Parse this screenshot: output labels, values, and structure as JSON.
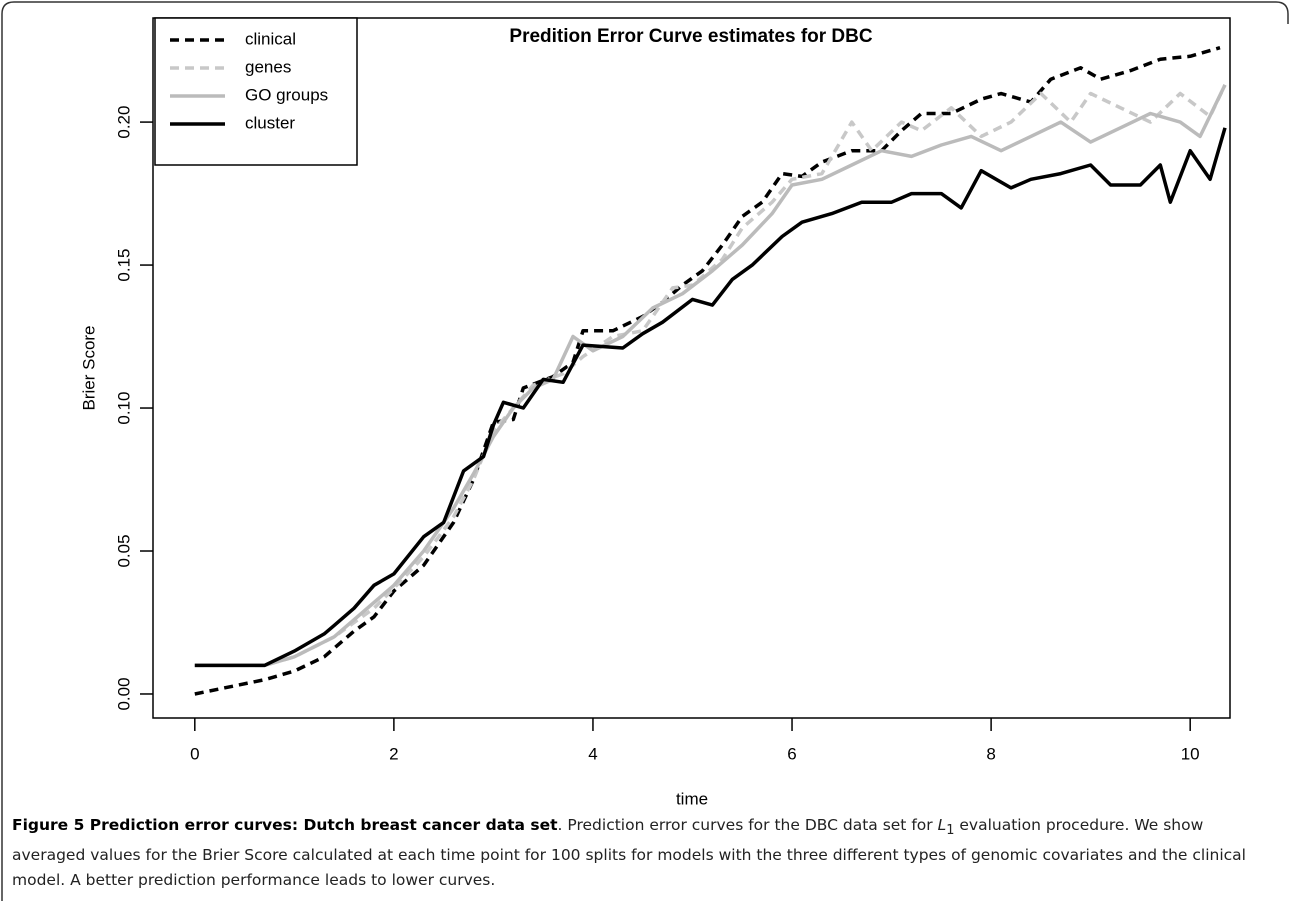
{
  "chart_data": {
    "type": "line",
    "title": "Predition Error Curve estimates for DBC",
    "xlabel": "time",
    "ylabel": "Brier Score",
    "xlim": [
      -0.42,
      10.4
    ],
    "ylim": [
      -0.0084,
      0.2364
    ],
    "xticks": [
      0,
      2,
      4,
      6,
      8,
      10
    ],
    "yticks": [
      {
        "value": 0,
        "label": "0.00"
      },
      {
        "value": 0.05,
        "label": "0.05"
      },
      {
        "value": 0.1,
        "label": "0.10"
      },
      {
        "value": 0.15,
        "label": "0.15"
      },
      {
        "value": 0.2,
        "label": "0.20"
      }
    ],
    "legend": "top-left",
    "series": [
      {
        "name": "clinical",
        "color": "#000000",
        "linestyle": "dashed",
        "x": [
          0,
          0.7,
          1.0,
          1.3,
          1.6,
          1.8,
          2.0,
          2.3,
          2.6,
          2.8,
          3.0,
          3.2,
          3.3,
          3.6,
          3.8,
          3.9,
          4.2,
          4.5,
          4.7,
          4.9,
          5.1,
          5.3,
          5.5,
          5.7,
          5.9,
          6.1,
          6.3,
          6.6,
          6.9,
          7.1,
          7.3,
          7.6,
          7.9,
          8.1,
          8.4,
          8.6,
          8.9,
          9.1,
          9.4,
          9.7,
          10.0,
          10.3
        ],
        "values": [
          0,
          0.005,
          0.008,
          0.013,
          0.022,
          0.027,
          0.036,
          0.045,
          0.06,
          0.075,
          0.095,
          0.096,
          0.107,
          0.111,
          0.116,
          0.127,
          0.127,
          0.132,
          0.137,
          0.143,
          0.148,
          0.157,
          0.167,
          0.172,
          0.182,
          0.181,
          0.186,
          0.19,
          0.19,
          0.197,
          0.203,
          0.203,
          0.208,
          0.21,
          0.207,
          0.215,
          0.219,
          0.215,
          0.218,
          0.222,
          0.223,
          0.226
        ]
      },
      {
        "name": "genes",
        "color": "#c8c8c8",
        "linestyle": "dashed",
        "x": [
          0,
          0.7,
          1.0,
          1.4,
          1.8,
          2.0,
          2.3,
          2.6,
          2.8,
          3.0,
          3.2,
          3.4,
          3.7,
          3.9,
          4.2,
          4.5,
          4.8,
          5.0,
          5.3,
          5.5,
          5.8,
          6.0,
          6.3,
          6.6,
          6.8,
          7.1,
          7.3,
          7.6,
          7.9,
          8.2,
          8.5,
          8.8,
          9.0,
          9.3,
          9.6,
          9.9,
          10.2,
          10.35
        ],
        "values": [
          0.01,
          0.01,
          0.013,
          0.02,
          0.03,
          0.037,
          0.048,
          0.062,
          0.075,
          0.092,
          0.1,
          0.108,
          0.112,
          0.118,
          0.125,
          0.127,
          0.142,
          0.143,
          0.152,
          0.163,
          0.172,
          0.18,
          0.182,
          0.2,
          0.19,
          0.2,
          0.197,
          0.205,
          0.195,
          0.2,
          0.21,
          0.2,
          0.21,
          0.205,
          0.2,
          0.21,
          0.202,
          0.213
        ]
      },
      {
        "name": "GO groups",
        "color": "#bbbbbb",
        "linestyle": "solid",
        "x": [
          0,
          0.7,
          1.0,
          1.4,
          1.8,
          2.0,
          2.3,
          2.6,
          2.8,
          3.0,
          3.2,
          3.4,
          3.6,
          3.8,
          4.0,
          4.3,
          4.6,
          4.9,
          5.2,
          5.5,
          5.8,
          6.0,
          6.3,
          6.6,
          6.9,
          7.2,
          7.5,
          7.8,
          8.1,
          8.4,
          8.7,
          9.0,
          9.3,
          9.6,
          9.9,
          10.1,
          10.35
        ],
        "values": [
          0.01,
          0.01,
          0.013,
          0.02,
          0.032,
          0.038,
          0.05,
          0.065,
          0.077,
          0.09,
          0.1,
          0.107,
          0.11,
          0.125,
          0.12,
          0.125,
          0.135,
          0.14,
          0.148,
          0.157,
          0.168,
          0.178,
          0.18,
          0.185,
          0.19,
          0.188,
          0.192,
          0.195,
          0.19,
          0.195,
          0.2,
          0.193,
          0.198,
          0.203,
          0.2,
          0.195,
          0.213
        ]
      },
      {
        "name": "cluster",
        "color": "#000000",
        "linestyle": "solid",
        "x": [
          0,
          0.7,
          1.0,
          1.3,
          1.4,
          1.6,
          1.8,
          2.0,
          2.3,
          2.5,
          2.7,
          2.9,
          3.0,
          3.1,
          3.3,
          3.5,
          3.7,
          3.9,
          4.3,
          4.5,
          4.7,
          5.0,
          5.2,
          5.4,
          5.6,
          5.9,
          6.1,
          6.4,
          6.7,
          7.0,
          7.2,
          7.5,
          7.7,
          7.9,
          8.2,
          8.4,
          8.7,
          9.0,
          9.2,
          9.5,
          9.7,
          9.8,
          10.0,
          10.2,
          10.35
        ],
        "values": [
          0.01,
          0.01,
          0.015,
          0.021,
          0.024,
          0.03,
          0.038,
          0.042,
          0.055,
          0.06,
          0.078,
          0.083,
          0.094,
          0.102,
          0.1,
          0.11,
          0.109,
          0.122,
          0.121,
          0.126,
          0.13,
          0.138,
          0.136,
          0.145,
          0.15,
          0.16,
          0.165,
          0.168,
          0.172,
          0.172,
          0.175,
          0.175,
          0.17,
          0.183,
          0.177,
          0.18,
          0.182,
          0.185,
          0.178,
          0.178,
          0.185,
          0.172,
          0.19,
          0.18,
          0.198
        ]
      }
    ]
  },
  "caption": {
    "label": "Figure 5 Prediction error curves: Dutch breast cancer data set",
    "text_1": ". Prediction error curves for the DBC data set for",
    "math": "L",
    "subscript": "1",
    "text_2": "evaluation procedure. We show averaged values for the Brier Score calculated at each time point for 100 splits for models with the three different types of genomic covariates and the clinical model. A better prediction performance leads to lower curves."
  }
}
